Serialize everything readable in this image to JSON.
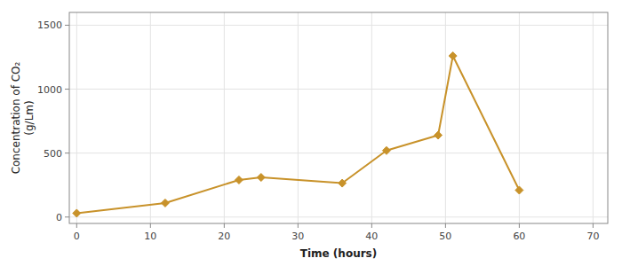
{
  "chart_data": {
    "type": "line",
    "x": [
      0,
      12,
      22,
      25,
      36,
      42,
      49,
      51,
      60
    ],
    "values": [
      30,
      110,
      290,
      310,
      265,
      520,
      640,
      1260,
      210
    ],
    "color": "#C8922A",
    "marker": "diamond",
    "xlabel": "Time (hours)",
    "ylabel": "Concentration of  CO₂\n(g/Lm)",
    "xlim": [
      -1,
      72
    ],
    "ylim": [
      -50,
      1600
    ],
    "xticks": [
      0,
      10,
      20,
      30,
      40,
      50,
      60,
      70
    ],
    "yticks": [
      0,
      500,
      1000,
      1500
    ],
    "grid": true
  }
}
